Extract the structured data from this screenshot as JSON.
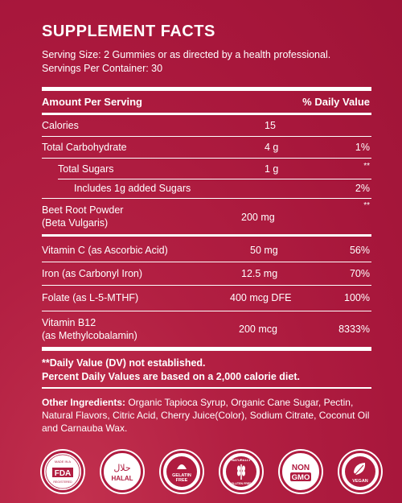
{
  "title": "SUPPLEMENT FACTS",
  "serving_size": "Serving Size: 2 Gummies or as directed by a health professional.",
  "servings_per_container": "Servings Per Container: 30",
  "table": {
    "header_amount": "Amount Per Serving",
    "header_dv": "% Daily Value",
    "rows": [
      {
        "name": "Calories",
        "amount": "15",
        "dv": ""
      },
      {
        "name": "Total Carbohydrate",
        "amount": "4 g",
        "dv": "1%"
      },
      {
        "name": "Total Sugars",
        "amount": "1 g",
        "dv": "**"
      },
      {
        "name": "Includes 1g added Sugars",
        "amount": "",
        "dv": "2%"
      },
      {
        "name": "Beet Root Powder",
        "name2": "(Beta Vulgaris)",
        "amount": "200 mg",
        "dv": "**"
      },
      {
        "name": "Vitamin C (as Ascorbic Acid)",
        "amount": "50 mg",
        "dv": "56%"
      },
      {
        "name": "Iron (as Carbonyl Iron)",
        "amount": "12.5 mg",
        "dv": "70%"
      },
      {
        "name": "Folate (as L-5-MTHF)",
        "amount": "400 mcg DFE",
        "dv": "100%"
      },
      {
        "name": "Vitamin B12",
        "name2": "(as Methylcobalamin)",
        "amount": "200 mcg",
        "dv": "8333%"
      }
    ]
  },
  "notes": {
    "line1": "**Daily Value (DV) not established.",
    "line2": "Percent Daily Values are based on a 2,000 calorie diet."
  },
  "other_ingredients": {
    "label": "Other Ingredients:",
    "text": " Organic Tapioca Syrup, Organic Cane Sugar, Pectin, Natural Flavors, Citric Acid, Cherry Juice(Color), Sodium Citrate, Coconut Oil and Carnauba Wax."
  },
  "badges": [
    {
      "icon": "fda-registered-facility-icon",
      "label": "FDA",
      "ring_text": "MADE IN A FDA REGISTERED FACILITY"
    },
    {
      "icon": "halal-icon",
      "label": "HALAL",
      "glyph": "حلال"
    },
    {
      "icon": "gelatin-free-icon",
      "label": "GELATIN",
      "label2": "FREE"
    },
    {
      "icon": "gluten-free-icon",
      "label": "NATURALLY",
      "label2": "GLUTEN FREE"
    },
    {
      "icon": "non-gmo-icon",
      "label": "NON",
      "label2": "GMO"
    },
    {
      "icon": "vegan-icon",
      "label": "VEGAN"
    }
  ],
  "colors": {
    "background": "#a8173c",
    "text": "#ffffff",
    "badge_icon": "#b01c40"
  }
}
